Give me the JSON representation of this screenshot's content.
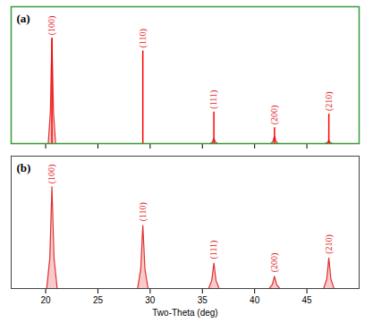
{
  "chart_data": [
    {
      "type": "line",
      "title": "(a)",
      "xlim": [
        16.7,
        50
      ],
      "xticks": [
        20,
        25,
        30,
        35,
        40,
        45
      ],
      "ylim": [
        0,
        1.3
      ],
      "grid": false,
      "tick_labels": false,
      "series": [
        {
          "type": "area",
          "color": "#e03030",
          "x": [
            16.7,
            20.25,
            20.45,
            20.6,
            20.75,
            20.95,
            35.75,
            35.95,
            36.1,
            36.25,
            36.45,
            41.55,
            41.75,
            41.9,
            42.05,
            42.25,
            46.75,
            46.95,
            47.1,
            47.25,
            47.45,
            50
          ],
          "values": [
            0,
            0,
            0.3,
            1.0,
            0.3,
            0,
            0,
            0.015,
            0.05,
            0.015,
            0,
            0,
            0.02,
            0.07,
            0.02,
            0,
            0,
            0.01,
            0.03,
            0.01,
            0,
            0
          ]
        },
        {
          "type": "stick",
          "color": "#ff0000",
          "x": [
            20.6,
            29.3,
            36.1,
            41.9,
            47.1
          ],
          "values": [
            1.0,
            0.88,
            0.3,
            0.15,
            0.28
          ]
        }
      ],
      "annotations": [
        {
          "x": 20.6,
          "y": 1.03,
          "text": "(100)"
        },
        {
          "x": 29.3,
          "y": 0.91,
          "text": "(110)"
        },
        {
          "x": 36.1,
          "y": 0.33,
          "text": "(111)"
        },
        {
          "x": 41.9,
          "y": 0.18,
          "text": "(200)"
        },
        {
          "x": 47.1,
          "y": 0.31,
          "text": "(210)"
        }
      ]
    },
    {
      "type": "line",
      "title": "(b)",
      "x_label": "Two-Theta (deg)",
      "xlim": [
        16.7,
        50
      ],
      "xticks": [
        20,
        25,
        30,
        35,
        40,
        45
      ],
      "ylim": [
        0,
        1.3
      ],
      "grid": false,
      "tick_labels": "x",
      "series": [
        {
          "type": "area",
          "color": "#e03030",
          "x": [
            16.7,
            20.1,
            20.4,
            20.6,
            20.8,
            21.1,
            28.8,
            29.1,
            29.3,
            29.5,
            29.8,
            35.6,
            35.9,
            36.1,
            36.3,
            36.6,
            41.4,
            41.7,
            41.9,
            42.1,
            42.4,
            46.6,
            46.9,
            47.1,
            47.3,
            47.6,
            50
          ],
          "values": [
            0,
            0,
            0.3,
            1.0,
            0.3,
            0,
            0,
            0.19,
            0.62,
            0.19,
            0,
            0,
            0.08,
            0.25,
            0.08,
            0,
            0,
            0.04,
            0.12,
            0.04,
            0,
            0,
            0.09,
            0.3,
            0.09,
            0,
            0
          ]
        }
      ],
      "annotations": [
        {
          "x": 20.6,
          "y": 1.03,
          "text": "(100)"
        },
        {
          "x": 29.3,
          "y": 0.66,
          "text": "(110)"
        },
        {
          "x": 36.1,
          "y": 0.29,
          "text": "(111)"
        },
        {
          "x": 41.9,
          "y": 0.16,
          "text": "(200)"
        },
        {
          "x": 47.1,
          "y": 0.34,
          "text": "(210)"
        }
      ]
    }
  ]
}
